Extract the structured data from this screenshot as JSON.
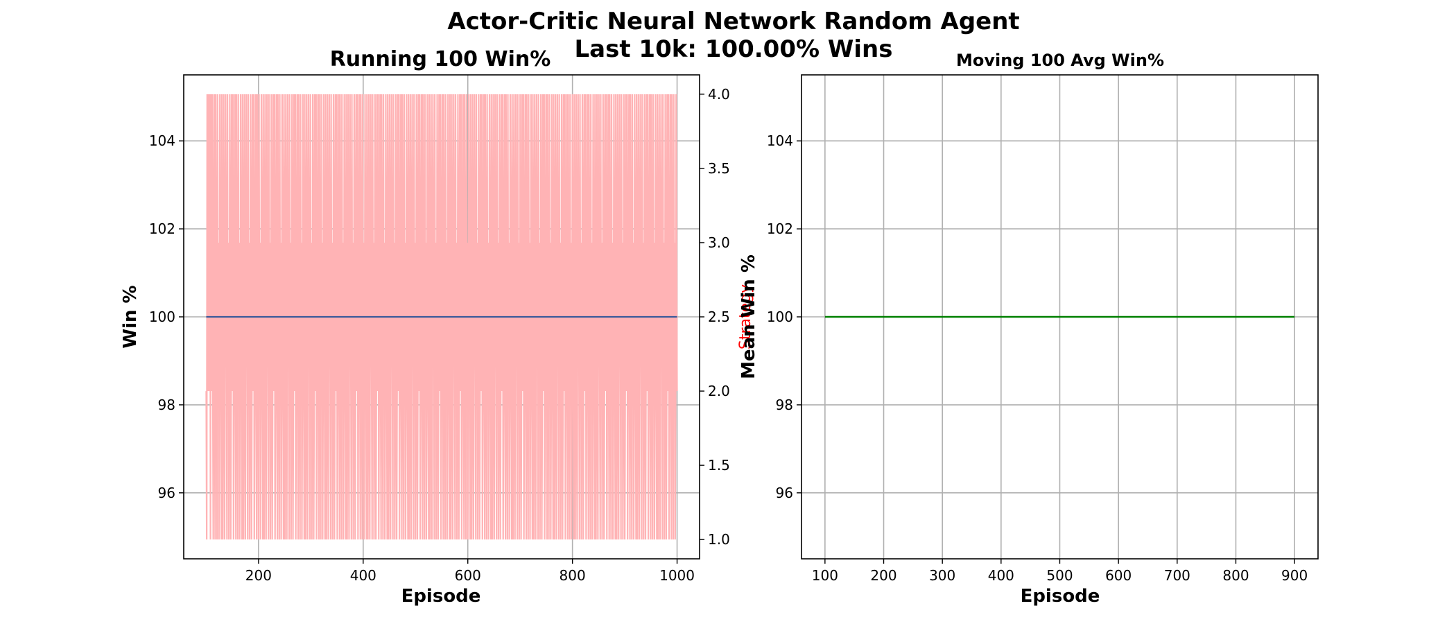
{
  "figure": {
    "suptitle_line1": "Actor-Critic Neural Network Random Agent",
    "suptitle_line2": "Last 10k: 100.00% Wins"
  },
  "colors": {
    "strategy_line": "#ffb3b5",
    "win_line": "#3a5a9a",
    "avg_line": "#008000",
    "grid": "#b0b0b0",
    "strategy_label": "#ff0000"
  },
  "chart_data": [
    {
      "type": "line",
      "title": "Running 100 Win%",
      "xlabel": "Episode",
      "ylabel": "Win %",
      "y2label": "Strategy",
      "xlim": [
        57,
        1043
      ],
      "ylim": [
        94.5,
        105.5
      ],
      "y2lim": [
        0.87,
        4.13
      ],
      "xticks": [
        200,
        400,
        600,
        800,
        1000
      ],
      "yticks": [
        96,
        98,
        100,
        102,
        104
      ],
      "y2ticks": [
        1.0,
        1.5,
        2.0,
        2.5,
        3.0,
        3.5,
        4.0
      ],
      "grid": true,
      "series": [
        {
          "axis": "left",
          "x_start": 100,
          "x_end": 1000,
          "value": 100
        },
        {
          "axis": "right",
          "x_start": 100,
          "x_end": 1000,
          "values": [
            2,
            1,
            4,
            3,
            2,
            4,
            3,
            2,
            4,
            1,
            4,
            2,
            3,
            4,
            2,
            1,
            3,
            4,
            2,
            1,
            4,
            3,
            2,
            1,
            4,
            2,
            3,
            1,
            2,
            4,
            3,
            2,
            1,
            4,
            2,
            1,
            3,
            4,
            2,
            1,
            3,
            4,
            3,
            2,
            1,
            4,
            2,
            3,
            1,
            2,
            4,
            3,
            1,
            2,
            4,
            2,
            3,
            4,
            1,
            2,
            3,
            4,
            2,
            1,
            4,
            3,
            2,
            1,
            4,
            2,
            3,
            1,
            2,
            4,
            3,
            2,
            1,
            4,
            2,
            1,
            3,
            4,
            2,
            1,
            3,
            4,
            3,
            2,
            1,
            4,
            2,
            3,
            1,
            2,
            4,
            3,
            1,
            2,
            4,
            2,
            3,
            4,
            1,
            2,
            3,
            4,
            2,
            1,
            4,
            3,
            2,
            1,
            4,
            2,
            3,
            1,
            2,
            4,
            3,
            2,
            1,
            4,
            2,
            1,
            3,
            4,
            2,
            1,
            3,
            4,
            3,
            2,
            1,
            4,
            2,
            3,
            1,
            2,
            4,
            3,
            1,
            2,
            4,
            2,
            3,
            4,
            1,
            2,
            3,
            4,
            2,
            1,
            4,
            3,
            2,
            1,
            4,
            2,
            3,
            1,
            2,
            4,
            3,
            2,
            1,
            4,
            2,
            1,
            3,
            4,
            2,
            1,
            3,
            4,
            3,
            2,
            1,
            4,
            2,
            3,
            1,
            2,
            4,
            3,
            1,
            2,
            4,
            2,
            3,
            4,
            1,
            2,
            3,
            4,
            2,
            1,
            4,
            3,
            2,
            1,
            4,
            2,
            3,
            1,
            2,
            4,
            3,
            2,
            1,
            4,
            2,
            1,
            3,
            4,
            2,
            1,
            3,
            4,
            3,
            2,
            1,
            4,
            2,
            3,
            1,
            2,
            4,
            3,
            1,
            2,
            4,
            2,
            3,
            4,
            1,
            2,
            3,
            4,
            2,
            1,
            4,
            3,
            2,
            1,
            4,
            2,
            3,
            1,
            2,
            4,
            3,
            2,
            1,
            4,
            2,
            1,
            3,
            4,
            2,
            1,
            3,
            4,
            3,
            2,
            1,
            4,
            2,
            3,
            1,
            2,
            4,
            3,
            1,
            2,
            4,
            2,
            3,
            4,
            1,
            2,
            3,
            4,
            2,
            1,
            4,
            3,
            2,
            1,
            4,
            2,
            3,
            1,
            2,
            4,
            3,
            2,
            1,
            4,
            2,
            1,
            3,
            4,
            2,
            1,
            3,
            4,
            3,
            2,
            1,
            4,
            2,
            3,
            1,
            2,
            4,
            3,
            1,
            2,
            4,
            2,
            3,
            4,
            1,
            2,
            3,
            4,
            2,
            1,
            4,
            3,
            2,
            1,
            4,
            2,
            3,
            1,
            2,
            4,
            3,
            2,
            1,
            4,
            2,
            1,
            3,
            4,
            2,
            1,
            3,
            4,
            3,
            2,
            1,
            4,
            2,
            3,
            1,
            2,
            4,
            3,
            1,
            2,
            4,
            2,
            3,
            4,
            1,
            2,
            3,
            4,
            2,
            1,
            4,
            3,
            2,
            1,
            4,
            2,
            3,
            1,
            2,
            4,
            3,
            2,
            1,
            4,
            2,
            1,
            3,
            4,
            2,
            1,
            3,
            4,
            3,
            2,
            1,
            4,
            2,
            3,
            1,
            2,
            4,
            3,
            1,
            2,
            4,
            2,
            3,
            4,
            1,
            2,
            3,
            4,
            2,
            1,
            4,
            3,
            2,
            1,
            4,
            2,
            3,
            1,
            2,
            4,
            3,
            2,
            1,
            4,
            2,
            1,
            3,
            4,
            2,
            1,
            3,
            4,
            3,
            2,
            1,
            4,
            2,
            3,
            1,
            2,
            4,
            3,
            1,
            2,
            4,
            2,
            3,
            4,
            1,
            2,
            3,
            4,
            2,
            1,
            4,
            3,
            2,
            1,
            4,
            2,
            3,
            1,
            2,
            4,
            3,
            2,
            1,
            4,
            2,
            1,
            3,
            4,
            2,
            1,
            3,
            4,
            3,
            2,
            1,
            4,
            2,
            3,
            1,
            2,
            4,
            3,
            1,
            2,
            4,
            2,
            3,
            4,
            1,
            2,
            3,
            4,
            2,
            1,
            4,
            3,
            2,
            1,
            4,
            2,
            3,
            1,
            2,
            4,
            3,
            2,
            1,
            4,
            2,
            1,
            3,
            4,
            2,
            1,
            3,
            4,
            3,
            2,
            1,
            4,
            2,
            3,
            1,
            2,
            4,
            3,
            1,
            2,
            4,
            2,
            3,
            4,
            1,
            2,
            3,
            4,
            2,
            1,
            4,
            3,
            2,
            1,
            4,
            2,
            3,
            1,
            2,
            4,
            3,
            2,
            1,
            4,
            2,
            1,
            3,
            4,
            2,
            1,
            3,
            4,
            3,
            2,
            1,
            4,
            2,
            3,
            1,
            2,
            4,
            3,
            1,
            2,
            4,
            2,
            3,
            4,
            1,
            2,
            3,
            4,
            2,
            1,
            4,
            3,
            2,
            1,
            4,
            2,
            3,
            1,
            2,
            4,
            3,
            2,
            1,
            4,
            2,
            1,
            3,
            4,
            2,
            1,
            3,
            4,
            3,
            2,
            1,
            4,
            2,
            3,
            1,
            2,
            4,
            3,
            1,
            2,
            4,
            2,
            3,
            4,
            1,
            2,
            3,
            4,
            2,
            1,
            4,
            3,
            2,
            1,
            4,
            2,
            3,
            1,
            2,
            4,
            3,
            2,
            1,
            4,
            2,
            1,
            3,
            4,
            2,
            1,
            3,
            4,
            3,
            2,
            1,
            4,
            2,
            3,
            1,
            2,
            4,
            3,
            1,
            2,
            4,
            2,
            3,
            4,
            1,
            2,
            3,
            4,
            2,
            1,
            4,
            3,
            2,
            1,
            4,
            2,
            3,
            1,
            2,
            4,
            3,
            2,
            1,
            4,
            2,
            1,
            3,
            4,
            2,
            1,
            3,
            4,
            3,
            2,
            1,
            4,
            2,
            3,
            1,
            2,
            4,
            3,
            1,
            2,
            4,
            2,
            3,
            4,
            1,
            2,
            3,
            4,
            2,
            1,
            4,
            3,
            2,
            1,
            4,
            2,
            3,
            1,
            2,
            4,
            3,
            2,
            1,
            4,
            2,
            1,
            3,
            4,
            2,
            1,
            3,
            4,
            3,
            2,
            1,
            4,
            2,
            3,
            1,
            2,
            4,
            3,
            1,
            2,
            4,
            2,
            3,
            4,
            1,
            2,
            3,
            4,
            2,
            1,
            4,
            3,
            2,
            1,
            4,
            2,
            3,
            1,
            2,
            4,
            3,
            2,
            1,
            4,
            2,
            1,
            3,
            4,
            2,
            1,
            3,
            4,
            3,
            2,
            1,
            4,
            2,
            3,
            1,
            2,
            4,
            3,
            1,
            2,
            4,
            2,
            3,
            4,
            1,
            2,
            3,
            4,
            2,
            1,
            4,
            3,
            2,
            1,
            4,
            2,
            3,
            1,
            2,
            4,
            3,
            2,
            1,
            4,
            2,
            1,
            3,
            4,
            2,
            1,
            3,
            4,
            3,
            2,
            1,
            4,
            2,
            3,
            1,
            2,
            4,
            3,
            1,
            2,
            4,
            2,
            3,
            4,
            1,
            2,
            3,
            4,
            2,
            1,
            4,
            3,
            2,
            1,
            4,
            2,
            3,
            1,
            2,
            4,
            3,
            2,
            1,
            4,
            2,
            1,
            3,
            4,
            2,
            1,
            3,
            4,
            3,
            2,
            1,
            4,
            2,
            3,
            1,
            2,
            4,
            3,
            1,
            2,
            4,
            2,
            3,
            4,
            1,
            2,
            3,
            4,
            2,
            1,
            4,
            3,
            2,
            1,
            4,
            2,
            3,
            1,
            2,
            4,
            3,
            2,
            1,
            4,
            2,
            1,
            3,
            4,
            2,
            1,
            3,
            4,
            3,
            2,
            1,
            4,
            2,
            3,
            1,
            2,
            4,
            3,
            1,
            2,
            4,
            2,
            3,
            4,
            1,
            2,
            3,
            4,
            2,
            1,
            4,
            3,
            2,
            1,
            4,
            2,
            3,
            1,
            2,
            4,
            3,
            2,
            1,
            4,
            2,
            1,
            3,
            4,
            2,
            1,
            3,
            4,
            3,
            2,
            1,
            4,
            2,
            3,
            1,
            2,
            4,
            3,
            1,
            2,
            4,
            2,
            3,
            4,
            1,
            2,
            3,
            4,
            2,
            1,
            4,
            3,
            2,
            1,
            4,
            2,
            3,
            1,
            2,
            4,
            3,
            2
          ]
        }
      ]
    },
    {
      "type": "line",
      "title": "Moving 100 Avg Win%",
      "xlabel": "Episode",
      "ylabel": "Mean Win %",
      "xlim": [
        60,
        940
      ],
      "ylim": [
        94.5,
        105.5
      ],
      "xticks": [
        100,
        200,
        300,
        400,
        500,
        600,
        700,
        800,
        900
      ],
      "yticks": [
        96,
        98,
        100,
        102,
        104
      ],
      "grid": true,
      "series": [
        {
          "x_start": 100,
          "x_end": 900,
          "value": 100
        }
      ]
    }
  ]
}
